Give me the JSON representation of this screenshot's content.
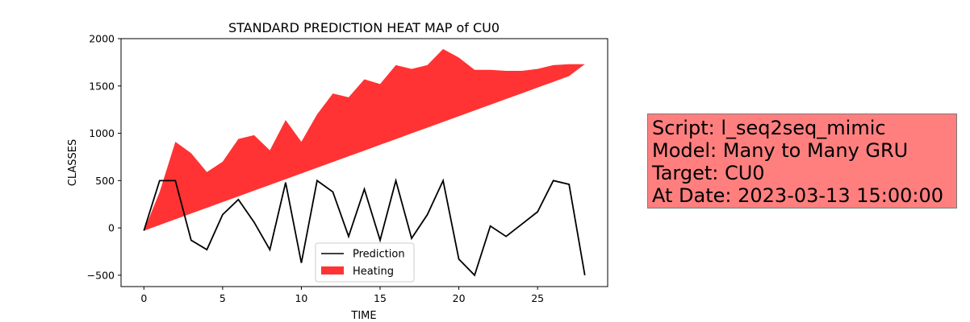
{
  "chart_data": {
    "type": "line",
    "title": "STANDARD PREDICTION HEAT MAP of CU0",
    "xlabel": "TIME",
    "ylabel": "CLASSES",
    "xlim": [
      -1.45,
      29.45
    ],
    "ylim": [
      -620,
      2000
    ],
    "xticks": [
      0,
      5,
      10,
      15,
      20,
      25
    ],
    "yticks": [
      -500,
      0,
      500,
      1000,
      1500,
      2000
    ],
    "legend_position": "lower-center",
    "grid": false,
    "x": [
      0,
      1,
      2,
      3,
      4,
      5,
      6,
      7,
      8,
      9,
      10,
      11,
      12,
      13,
      14,
      15,
      16,
      17,
      18,
      19,
      20,
      21,
      22,
      23,
      24,
      25,
      26,
      27,
      28
    ],
    "series": [
      {
        "name": "Prediction",
        "kind": "line",
        "color": "#000000",
        "values": [
          -30,
          500,
          500,
          -130,
          -230,
          140,
          300,
          60,
          -230,
          480,
          -370,
          500,
          380,
          -90,
          410,
          -130,
          500,
          -110,
          140,
          500,
          -330,
          -500,
          20,
          -90,
          40,
          170,
          500,
          460,
          -500
        ]
      },
      {
        "name": "Heating",
        "kind": "fill_between",
        "color": "#ff0000",
        "alpha": 0.8,
        "lower": [
          -30,
          31,
          91,
          152,
          212,
          273,
          333,
          394,
          454,
          515,
          575,
          636,
          696,
          757,
          817,
          878,
          938,
          999,
          1059,
          1120,
          1180,
          1241,
          1301,
          1362,
          1422,
          1483,
          1543,
          1604,
          1730
        ],
        "upper": [
          -30,
          380,
          910,
          790,
          590,
          700,
          940,
          980,
          820,
          1140,
          910,
          1200,
          1420,
          1380,
          1570,
          1520,
          1720,
          1680,
          1720,
          1890,
          1800,
          1670,
          1670,
          1660,
          1660,
          1680,
          1720,
          1730,
          1730
        ]
      }
    ]
  },
  "info_box": {
    "script": "Script: l_seq2seq_mimic",
    "model": "Model: Many to Many GRU",
    "target": "Target: CU0",
    "date": "At Date: 2023-03-13 15:00:00"
  }
}
